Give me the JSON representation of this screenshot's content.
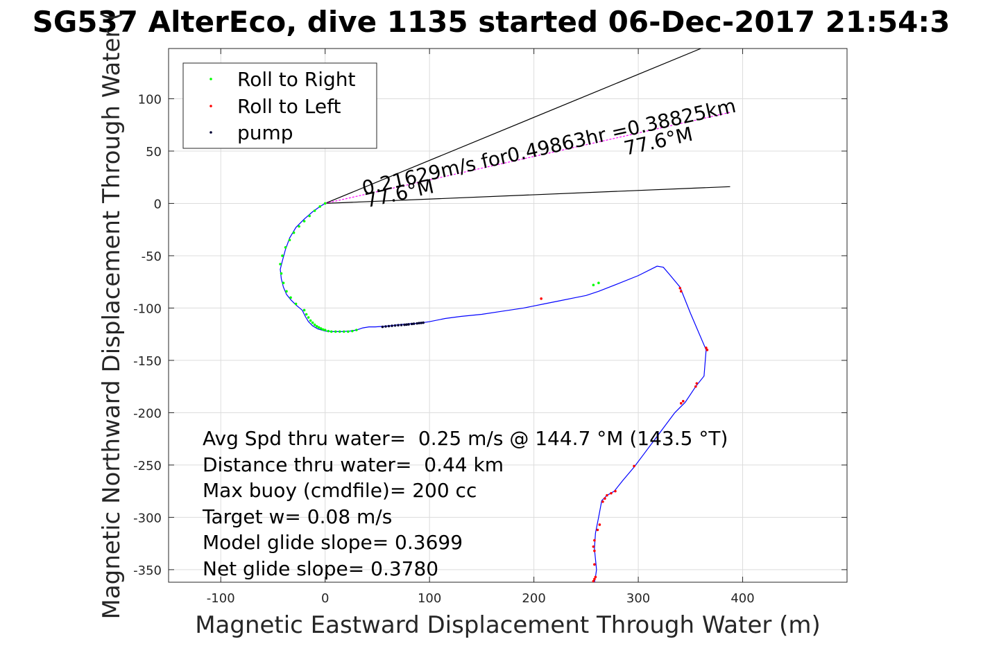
{
  "chart_data": {
    "type": "line",
    "title": "SG537 AlterEco, dive 1135 started 06-Dec-2017 21:54:3",
    "xlabel": "Magnetic Eastward Displacement Through Water (m)",
    "ylabel": "Magnetic Northward Displacement Through Water (",
    "xlim": [
      -150,
      500
    ],
    "ylim": [
      -362,
      148
    ],
    "xticks": [
      -100,
      0,
      100,
      200,
      300,
      400
    ],
    "yticks": [
      -350,
      -300,
      -250,
      -200,
      -150,
      -100,
      -50,
      0,
      50,
      100
    ],
    "grid": true,
    "legend_position": "top-left",
    "legend": [
      {
        "label": "Roll to Right",
        "color": "#00ff00"
      },
      {
        "label": "Roll to Left",
        "color": "#ff0000"
      },
      {
        "label": "pump",
        "color": "#000033"
      }
    ],
    "track": {
      "color": "#0000ff",
      "x": [
        0,
        -5,
        -12,
        -20,
        -28,
        -34,
        -38,
        -41,
        -43,
        -42,
        -40,
        -37,
        -33,
        -28,
        -22,
        -19,
        -16,
        -12,
        -7,
        0,
        8,
        16,
        24,
        30,
        36,
        42,
        48,
        55,
        62,
        70,
        80,
        90,
        100,
        115,
        130,
        150,
        170,
        190,
        210,
        225,
        240,
        250,
        262,
        280,
        300,
        318,
        324,
        330,
        340,
        350,
        365,
        363,
        355,
        345,
        335,
        320,
        305,
        296,
        285,
        277,
        270,
        265,
        262,
        259,
        258,
        259,
        260,
        259,
        258
      ],
      "y": [
        0,
        -3,
        -8,
        -15,
        -23,
        -33,
        -44,
        -55,
        -63,
        -72,
        -80,
        -87,
        -92,
        -97,
        -102,
        -108,
        -113,
        -117,
        -120,
        -122,
        -122.5,
        -122.5,
        -122,
        -121,
        -119,
        -118,
        -118,
        -117.5,
        -117,
        -116,
        -115,
        -114.5,
        -113,
        -110,
        -108,
        -106,
        -103,
        -100,
        -96,
        -93,
        -90,
        -88,
        -84,
        -77,
        -69,
        -60,
        -61,
        -68,
        -80,
        -105,
        -140,
        -165,
        -175,
        -190,
        -200,
        -220,
        -240,
        -252,
        -265,
        -275,
        -279,
        -284,
        -300,
        -315,
        -330,
        -340,
        -350,
        -357,
        -362
      ]
    },
    "roll_right_points": {
      "x": [
        0,
        -5,
        -10,
        -15,
        -20,
        -25,
        -30,
        -34,
        -38,
        -41,
        -43,
        -42,
        -40,
        -37,
        -33,
        -28,
        -20,
        -18,
        -16,
        -14,
        -12,
        -10,
        -8,
        -6,
        -4,
        -2,
        0,
        3,
        6,
        10,
        14,
        18,
        22,
        26,
        30,
        262,
        257
      ],
      "y": [
        0,
        -3,
        -7,
        -12,
        -17,
        -22,
        -28,
        -35,
        -42,
        -50,
        -58,
        -67,
        -76,
        -84,
        -90,
        -96,
        -102,
        -106,
        -109,
        -112,
        -114,
        -116,
        -117.5,
        -118.5,
        -119.5,
        -120.5,
        -121,
        -122,
        -122.5,
        -122.5,
        -122.5,
        -122.5,
        -122.5,
        -122,
        -121,
        -76,
        -78
      ]
    },
    "roll_left_points": {
      "x": [
        207,
        340,
        341,
        365,
        366,
        356,
        355,
        343,
        341,
        296,
        278,
        274,
        270,
        268,
        266,
        263,
        261,
        258,
        257,
        258,
        258,
        259,
        258,
        257
      ],
      "y": [
        -91,
        -81,
        -84,
        -138,
        -140,
        -172,
        -175,
        -189,
        -191,
        -251,
        -275,
        -277,
        -279,
        -282,
        -285,
        -307,
        -312,
        -322,
        -328,
        -332,
        -345,
        -357,
        -359,
        -361
      ]
    },
    "pump_points": {
      "x": [
        55,
        58,
        61,
        64,
        67,
        70,
        73,
        76,
        78,
        80,
        83,
        85,
        88,
        90,
        92,
        94
      ],
      "y": [
        -118,
        -117.6,
        -117.3,
        -117,
        -116.7,
        -116.4,
        -116.2,
        -116,
        -115.8,
        -115.6,
        -115.2,
        -115,
        -114.7,
        -114.4,
        -114.2,
        -114
      ]
    },
    "reference_lines": [
      {
        "name": "heading-line-upper",
        "color": "#000000",
        "x": [
          0,
          360
        ],
        "y": [
          0,
          148
        ]
      },
      {
        "name": "heading-line-lower",
        "color": "#000000",
        "x": [
          0,
          388
        ],
        "y": [
          0,
          16
        ]
      },
      {
        "name": "current-vector",
        "color": "#ff00ff",
        "x": [
          0,
          388
        ],
        "y": [
          0,
          87
        ]
      }
    ],
    "annotations": [
      {
        "text": "0.21629m/s for0.49863hr =0.38825km",
        "x": 37,
        "y": 8,
        "angle_deg": -12.6
      },
      {
        "text": "77.6°M",
        "x": 40,
        "y": -4,
        "angle_deg": -12.6
      },
      {
        "text": "77.6°M",
        "x": 288,
        "y": 46,
        "angle_deg": -12.6
      }
    ],
    "stats": [
      "Avg Spd thru water=  0.25 m/s @ 144.7 °M (143.5 °T)",
      "Distance thru water=  0.44 km",
      "Max buoy (cmdfile)= 200 cc",
      "Target w= 0.08 m/s",
      "Model glide slope= 0.3699",
      "Net glide slope= 0.3780"
    ]
  }
}
